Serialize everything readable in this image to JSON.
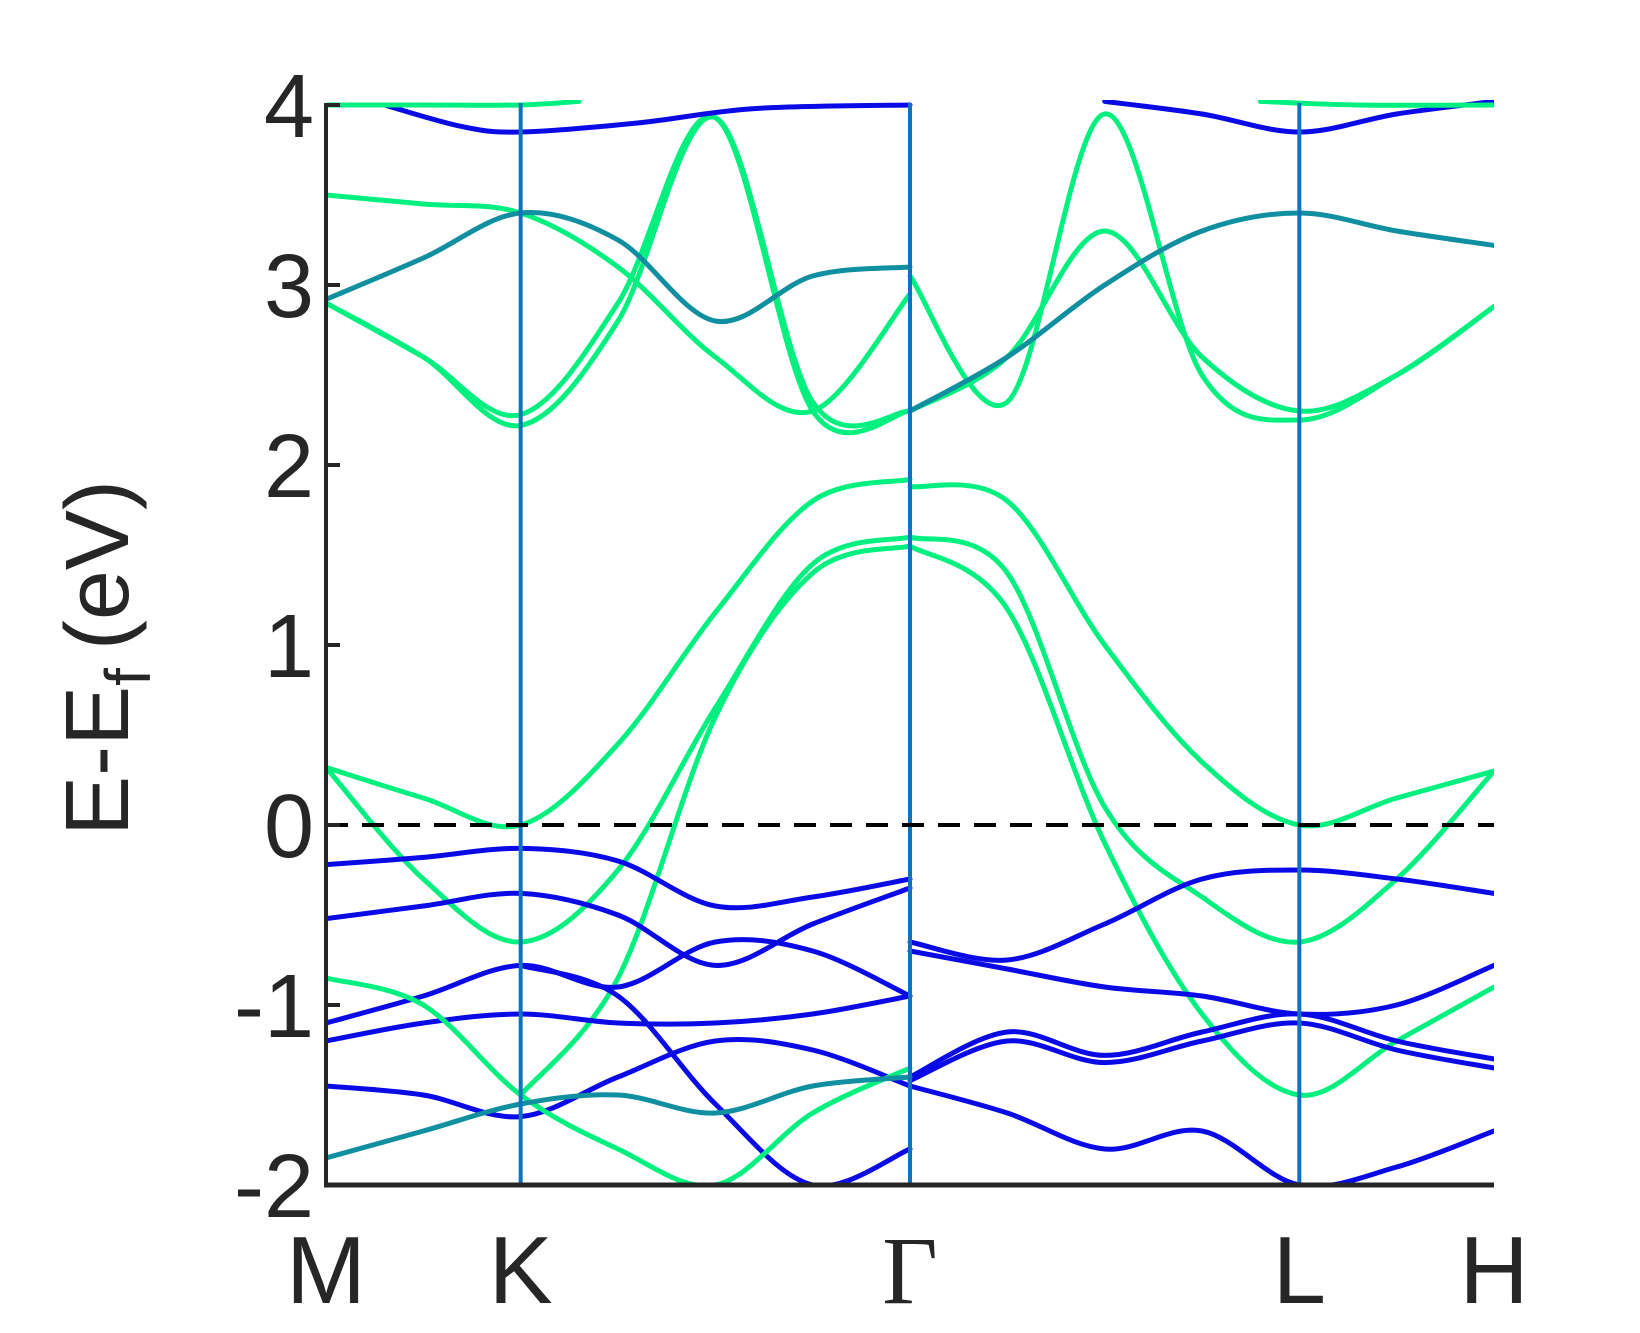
{
  "chart_data": {
    "type": "line",
    "title": "",
    "xlabel": "",
    "ylabel": "E-E",
    "ylabel_subscript": "f",
    "ylabel_unit": "(eV)",
    "ylim": [
      -2,
      4
    ],
    "yticks": [
      "-2",
      "-1",
      "0",
      "1",
      "2",
      "3",
      "4"
    ],
    "xlim": [
      0,
      6
    ],
    "kpoints": [
      {
        "label": "M",
        "x": 0
      },
      {
        "label": "K",
        "x": 1
      },
      {
        "label": "Γ",
        "x": 3
      },
      {
        "label": "L",
        "x": 5
      },
      {
        "label": "H",
        "x": 6
      }
    ],
    "fermi_level": 0,
    "colors": {
      "green": "#00f07f",
      "blue": "#0a0ae6",
      "teal": "#0f8f9f",
      "vline": "#0e72bd",
      "axis": "#262626",
      "fermi": "#000000"
    },
    "series": [
      {
        "color": "green",
        "x": [
          0,
          0.5,
          1,
          1.5,
          2,
          2.5,
          3
        ],
        "y": [
          0.32,
          0.15,
          0.0,
          0.45,
          1.18,
          1.8,
          1.92
        ]
      },
      {
        "color": "green",
        "x": [
          0,
          0.5,
          1,
          1.5,
          2,
          2.5,
          3
        ],
        "y": [
          0.32,
          -0.3,
          -0.65,
          -0.25,
          0.65,
          1.45,
          1.6
        ]
      },
      {
        "color": "green",
        "x": [
          1,
          1.5,
          2,
          2.5,
          3
        ],
        "y": [
          -1.5,
          -0.85,
          0.6,
          1.4,
          1.55
        ]
      },
      {
        "color": "green",
        "x": [
          3,
          3.5,
          4,
          4.5,
          5,
          5.5,
          6
        ],
        "y": [
          1.88,
          1.8,
          1.0,
          0.35,
          0.0,
          0.15,
          0.3
        ]
      },
      {
        "color": "green",
        "x": [
          3,
          3.5,
          4,
          4.5,
          5,
          5.5,
          6
        ],
        "y": [
          1.6,
          1.4,
          0.1,
          -0.4,
          -0.65,
          -0.3,
          0.3
        ]
      },
      {
        "color": "green",
        "x": [
          3,
          3.5,
          4,
          4.5,
          5,
          5.5,
          6
        ],
        "y": [
          1.55,
          1.2,
          -0.1,
          -1.05,
          -1.5,
          -1.2,
          -0.9
        ]
      },
      {
        "color": "green",
        "x": [
          0,
          0.5,
          1,
          1.5,
          2,
          2.5,
          3
        ],
        "y": [
          2.9,
          2.6,
          2.22,
          2.8,
          3.93,
          2.35,
          2.3
        ]
      },
      {
        "color": "green",
        "x": [
          0,
          0.5,
          1,
          1.5,
          2,
          2.5,
          3
        ],
        "y": [
          2.9,
          2.6,
          2.28,
          2.9,
          3.93,
          2.3,
          2.3
        ]
      },
      {
        "color": "green",
        "x": [
          0,
          0.5,
          1,
          1.5,
          2,
          2.5,
          3
        ],
        "y": [
          3.5,
          3.45,
          3.4,
          3.1,
          2.6,
          2.3,
          2.95
        ]
      },
      {
        "color": "teal",
        "x": [
          0,
          0.5,
          1,
          1.5,
          2,
          2.5,
          3
        ],
        "y": [
          2.92,
          3.15,
          3.4,
          3.25,
          2.8,
          3.05,
          3.1
        ]
      },
      {
        "color": "green",
        "x": [
          3,
          3.5,
          4,
          4.5,
          5,
          5.5,
          6
        ],
        "y": [
          3.05,
          2.35,
          3.95,
          2.5,
          2.25,
          2.5,
          2.88
        ]
      },
      {
        "color": "green",
        "x": [
          3,
          3.5,
          4,
          4.5,
          5,
          5.5,
          6
        ],
        "y": [
          2.3,
          2.6,
          3.3,
          2.6,
          2.3,
          2.5,
          2.88
        ]
      },
      {
        "color": "teal",
        "x": [
          3,
          3.5,
          4,
          4.5,
          5,
          5.5,
          6
        ],
        "y": [
          2.3,
          2.6,
          3.0,
          3.3,
          3.4,
          3.3,
          3.22
        ]
      },
      {
        "color": "blue",
        "x": [
          0.3,
          0.7,
          1,
          1.6,
          2.2,
          3
        ],
        "y": [
          4.0,
          3.88,
          3.85,
          3.9,
          3.98,
          4.0
        ]
      },
      {
        "color": "green",
        "x": [
          0,
          0.5,
          1,
          1.3
        ],
        "y": [
          4.0,
          4.0,
          4.0,
          4.02
        ]
      },
      {
        "color": "blue",
        "x": [
          4,
          4.5,
          5,
          5.5,
          6
        ],
        "y": [
          4.02,
          3.95,
          3.85,
          3.95,
          4.02
        ]
      },
      {
        "color": "green",
        "x": [
          4.8,
          5.3,
          6
        ],
        "y": [
          4.02,
          4.0,
          4.0
        ]
      },
      {
        "color": "blue",
        "x": [
          0,
          0.5,
          1,
          1.5,
          2,
          2.5,
          3
        ],
        "y": [
          -0.22,
          -0.18,
          -0.13,
          -0.2,
          -0.45,
          -0.4,
          -0.3
        ]
      },
      {
        "color": "blue",
        "x": [
          0,
          0.5,
          1,
          1.5,
          2,
          2.5,
          3
        ],
        "y": [
          -0.52,
          -0.45,
          -0.38,
          -0.5,
          -0.78,
          -0.55,
          -0.35
        ]
      },
      {
        "color": "blue",
        "x": [
          0,
          0.5,
          1,
          1.5,
          2,
          2.5,
          3
        ],
        "y": [
          -1.1,
          -0.95,
          -0.78,
          -0.9,
          -0.65,
          -0.7,
          -0.95
        ]
      },
      {
        "color": "blue",
        "x": [
          0,
          0.5,
          1,
          1.5,
          2,
          2.5,
          3
        ],
        "y": [
          -1.2,
          -1.1,
          -1.05,
          -1.1,
          -1.1,
          -1.05,
          -0.95
        ]
      },
      {
        "color": "blue",
        "x": [
          0,
          0.5,
          1,
          1.5,
          2,
          2.5,
          3
        ],
        "y": [
          -1.45,
          -1.5,
          -1.62,
          -1.4,
          -1.2,
          -1.25,
          -1.45
        ]
      },
      {
        "color": "blue",
        "x": [
          1,
          1.5,
          2,
          2.5,
          3
        ],
        "y": [
          -0.78,
          -0.95,
          -1.55,
          -2.0,
          -1.8
        ]
      },
      {
        "color": "blue",
        "x": [
          3,
          3.5,
          4,
          4.5,
          5,
          5.5,
          6
        ],
        "y": [
          -0.65,
          -0.75,
          -0.55,
          -0.3,
          -0.25,
          -0.3,
          -0.38
        ]
      },
      {
        "color": "blue",
        "x": [
          3,
          3.5,
          4,
          4.5,
          5,
          5.5,
          6
        ],
        "y": [
          -0.7,
          -0.8,
          -0.9,
          -0.95,
          -1.05,
          -1.0,
          -0.78
        ]
      },
      {
        "color": "blue",
        "x": [
          3,
          3.5,
          4,
          4.5,
          5,
          5.5,
          6
        ],
        "y": [
          -1.4,
          -1.15,
          -1.28,
          -1.15,
          -1.05,
          -1.2,
          -1.3
        ]
      },
      {
        "color": "blue",
        "x": [
          3,
          3.5,
          4,
          4.5,
          5,
          5.5,
          6
        ],
        "y": [
          -1.42,
          -1.2,
          -1.32,
          -1.2,
          -1.1,
          -1.25,
          -1.35
        ]
      },
      {
        "color": "blue",
        "x": [
          3,
          3.5,
          4,
          4.5,
          5,
          5.5,
          6
        ],
        "y": [
          -1.45,
          -1.6,
          -1.8,
          -1.7,
          -2.0,
          -1.9,
          -1.7
        ]
      },
      {
        "color": "green",
        "x": [
          0,
          0.5,
          1,
          1.5,
          2,
          2.5,
          3
        ],
        "y": [
          -0.85,
          -1.0,
          -1.5,
          -1.8,
          -2.0,
          -1.6,
          -1.35
        ]
      },
      {
        "color": "teal",
        "x": [
          0,
          0.5,
          1,
          1.5,
          2,
          2.5,
          3
        ],
        "y": [
          -1.85,
          -1.7,
          -1.55,
          -1.5,
          -1.6,
          -1.45,
          -1.4
        ]
      }
    ]
  }
}
